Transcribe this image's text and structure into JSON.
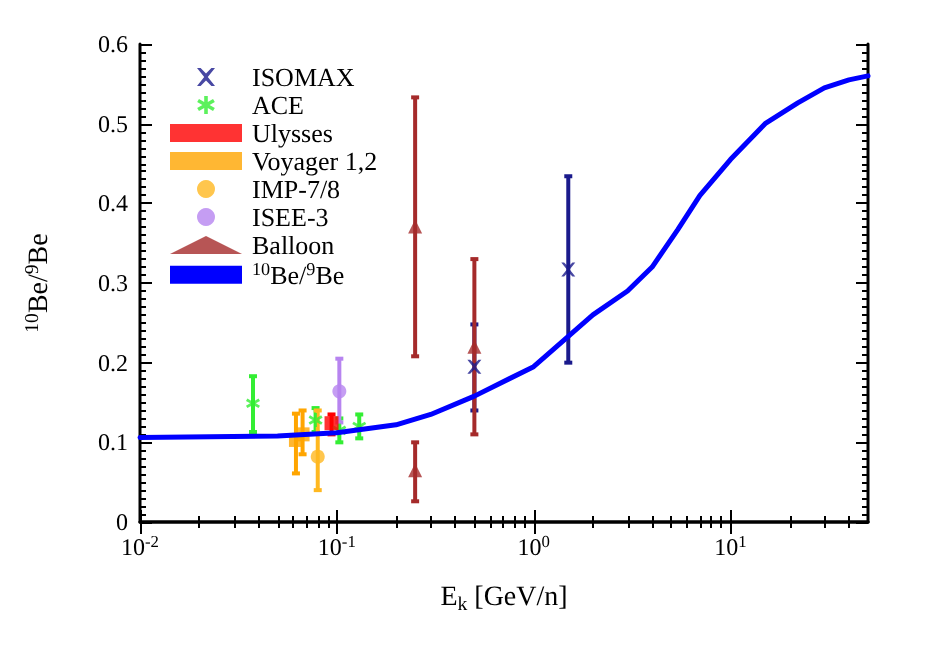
{
  "chart_data": {
    "type": "scatter",
    "xlabel": "E$_{k}$ [GeV/n]",
    "ylabel": "$^{10}$Be/$^{9}$Be",
    "log": "x",
    "xlim": [
      0.01,
      50
    ],
    "xticks": [
      {
        "value": 0.01,
        "label": "10$^{-2}$"
      },
      {
        "value": 0.1,
        "label": "10$^{-1}$"
      },
      {
        "value": 1,
        "label": "10$^{0}$"
      },
      {
        "value": 10,
        "label": "10$^{1}$"
      }
    ],
    "ylim": [
      0,
      0.6
    ],
    "yticks": [
      0,
      0.1,
      0.2,
      0.3,
      0.4,
      0.5,
      0.6
    ],
    "grid": false,
    "legend": "top left",
    "series": [
      {
        "name": "ISOMAX",
        "color": "#1a1a8c",
        "marker": "cross",
        "x": [
          0.5,
          1.5
        ],
        "values": [
          0.195,
          0.317
        ],
        "errors": [
          [
            0.14,
            0.248
          ],
          [
            0.2,
            0.434
          ]
        ]
      },
      {
        "name": "ACE",
        "color": "#33ee33",
        "marker": "star",
        "x": [
          0.0375,
          0.078,
          0.103,
          0.13
        ],
        "values": [
          0.149,
          0.128,
          0.115,
          0.12
        ],
        "errors": [
          [
            0.113,
            0.183
          ],
          [
            0.113,
            0.143
          ],
          [
            0.1,
            0.13
          ],
          [
            0.105,
            0.135
          ]
        ]
      },
      {
        "name": "Ulysses",
        "color": "#ff0000",
        "marker": "square",
        "x": [
          0.094
        ],
        "values": [
          0.124
        ],
        "errors": [
          [
            0.11,
            0.135
          ]
        ]
      },
      {
        "name": "Voyager 1,2",
        "color": "#ffa500",
        "marker": "square",
        "x": [
          0.062,
          0.067
        ],
        "values": [
          0.103,
          0.11
        ],
        "errors": [
          [
            0.061,
            0.136
          ],
          [
            0.085,
            0.14
          ]
        ]
      },
      {
        "name": "IMP-7/8",
        "color": "#ffb820",
        "marker": "circle",
        "x": [
          0.08
        ],
        "values": [
          0.082
        ],
        "errors": [
          [
            0.04,
            0.14
          ]
        ]
      },
      {
        "name": "ISEE-3",
        "color": "#b784f0",
        "marker": "circle",
        "x": [
          0.103
        ],
        "values": [
          0.164
        ],
        "errors": [
          [
            0.125,
            0.205
          ]
        ]
      },
      {
        "name": "Balloon",
        "color": "#a52a2a",
        "marker": "triangle",
        "x": [
          0.25,
          0.25,
          0.5
        ],
        "values": [
          0.371,
          0.065,
          0.22
        ],
        "errors": [
          [
            0.208,
            0.533
          ],
          [
            0.026,
            0.1
          ],
          [
            0.11,
            0.33
          ]
        ]
      },
      {
        "name": "$^{10}$Be/$^{9}$Be",
        "color": "#0000ff",
        "type": "line",
        "marker": "none",
        "line_style": "solid",
        "x": [
          0.01,
          0.05,
          0.1,
          0.2,
          0.3,
          0.5,
          1,
          1.5,
          2,
          3,
          4,
          5.4,
          7,
          10,
          15,
          22,
          30,
          40,
          50
        ],
        "values": [
          0.106,
          0.108,
          0.112,
          0.122,
          0.135,
          0.158,
          0.195,
          0.233,
          0.26,
          0.29,
          0.32,
          0.367,
          0.41,
          0.455,
          0.5,
          0.526,
          0.545,
          0.555,
          0.56
        ]
      }
    ]
  }
}
